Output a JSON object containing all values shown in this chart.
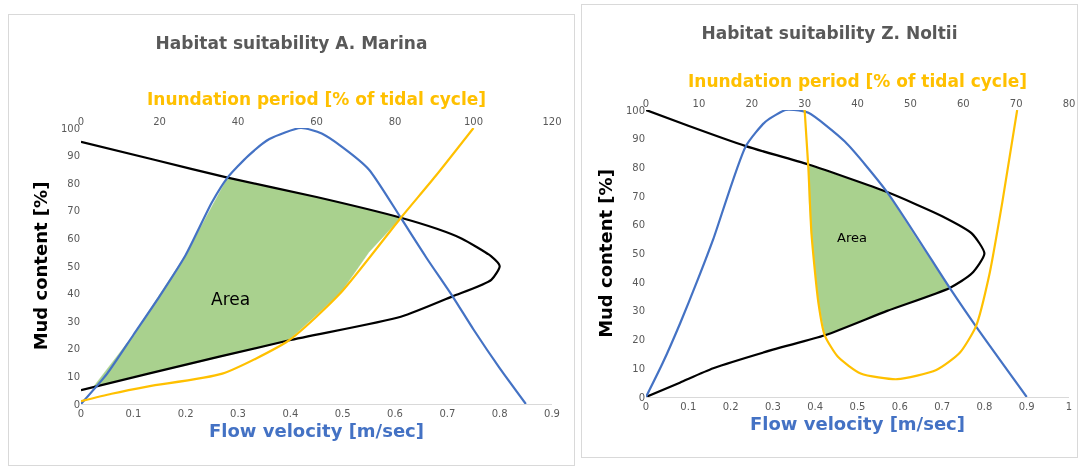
{
  "chart_data": [
    {
      "type": "line",
      "title": "Habitat suitability A. Marina",
      "xlabel": "Flow velocity [m/sec]",
      "x2label": "Inundation period [% of tidal cycle]",
      "ylabel": "Mud content [%]",
      "xlim": [
        0,
        0.9
      ],
      "xticks": [
        0,
        0.1,
        0.2,
        0.3,
        0.4,
        0.5,
        0.6,
        0.7,
        0.8,
        0.9
      ],
      "x2lim": [
        0,
        120
      ],
      "x2ticks": [
        0,
        20,
        40,
        60,
        80,
        100,
        120
      ],
      "ylim": [
        0,
        100
      ],
      "yticks": [
        0,
        10,
        20,
        30,
        40,
        50,
        60,
        70,
        80,
        90,
        100
      ],
      "grid": false,
      "annotations": [
        "Area"
      ],
      "series": [
        {
          "type": "area",
          "color": "#a9d18e",
          "x": [
            0.023,
            0.1,
            0.2,
            0.28,
            0.45,
            0.611,
            0.55,
            0.495,
            0.396,
            0.2,
            0.1,
            0.023
          ],
          "values": [
            6,
            25,
            54,
            82,
            75,
            67.5,
            55,
            40,
            23,
            14,
            10,
            6
          ]
        },
        {
          "color": "#000000",
          "x": [
            0,
            0.14,
            0.28,
            0.45,
            0.611,
            0.68,
            0.727,
            0.784,
            0.8,
            0.784,
            0.71,
            0.611,
            0.396,
            0.129,
            0
          ],
          "values": [
            95,
            88.5,
            82,
            75,
            67.5,
            63.5,
            60,
            53.5,
            50,
            45,
            39,
            31.6,
            23,
            11,
            5
          ]
        },
        {
          "color": "#4472c4",
          "x": [
            0,
            0.05,
            0.1,
            0.15,
            0.2,
            0.25,
            0.28,
            0.32,
            0.36,
            0.42,
            0.46,
            0.5,
            0.55,
            0.611,
            0.66,
            0.71,
            0.75,
            0.8,
            0.85
          ],
          "values": [
            0,
            11,
            25,
            39,
            54,
            73,
            82,
            90,
            96,
            100,
            98,
            93,
            85,
            67.5,
            53,
            39,
            27,
            13,
            0
          ]
        },
        {
          "axis": "x2",
          "color": "#ffc000",
          "x": [
            0,
            7.8,
            17.2,
            36,
            52.9,
            66,
            81.5,
            90.4,
            100
          ],
          "values": [
            1,
            3.7,
            6.4,
            11,
            23,
            40,
            67.5,
            82.7,
            100
          ]
        }
      ]
    },
    {
      "type": "line",
      "title": "Habitat suitability Z. Noltii",
      "xlabel": "Flow velocity [m/sec]",
      "x2label": "Inundation period [% of tidal cycle]",
      "ylabel": "Mud content [%]",
      "xlim": [
        0,
        1
      ],
      "xticks": [
        0,
        0.1,
        0.2,
        0.3,
        0.4,
        0.5,
        0.6,
        0.7,
        0.8,
        0.9,
        1
      ],
      "x2lim": [
        0,
        80
      ],
      "x2ticks": [
        0,
        10,
        20,
        30,
        40,
        50,
        60,
        70,
        80
      ],
      "ylim": [
        0,
        100
      ],
      "yticks": [
        0,
        10,
        20,
        30,
        40,
        50,
        60,
        70,
        80,
        90,
        100
      ],
      "grid": false,
      "annotations": [
        "Area"
      ],
      "series": [
        {
          "type": "area",
          "color": "#a9d18e",
          "x": [
            0.384,
            0.47,
            0.57,
            0.64,
            0.718,
            0.57,
            0.423,
            0.408,
            0.391,
            0.386,
            0.384
          ],
          "values": [
            81,
            76.5,
            71.4,
            55,
            38,
            30,
            21.5,
            32.9,
            56.8,
            68,
            81
          ]
        },
        {
          "color": "#000000",
          "x": [
            0,
            0.1,
            0.236,
            0.384,
            0.57,
            0.7,
            0.77,
            0.8,
            0.77,
            0.718,
            0.57,
            0.423,
            0.3,
            0.159,
            0.08,
            0
          ],
          "values": [
            100,
            94.5,
            87.4,
            81,
            71.4,
            63,
            57,
            50,
            43,
            38,
            30,
            21.5,
            16.5,
            10,
            5,
            0
          ]
        },
        {
          "color": "#4472c4",
          "x": [
            0,
            0.04,
            0.081,
            0.12,
            0.159,
            0.236,
            0.283,
            0.33,
            0.35,
            0.384,
            0.47,
            0.57,
            0.718,
            0.78,
            0.9
          ],
          "values": [
            0,
            12,
            25.8,
            40,
            55,
            87.4,
            96,
            100,
            100,
            99,
            89,
            71.4,
            38,
            24.6,
            0
          ]
        },
        {
          "axis": "x2",
          "color": "#ffc000",
          "x": [
            30,
            30.7,
            31.3,
            32.6,
            33.8,
            36.3,
            40.6,
            47.5,
            54.9,
            59.3,
            62.4,
            64.9,
            67.4,
            70.2
          ],
          "values": [
            100,
            80,
            56.8,
            32.9,
            21.5,
            14,
            8.2,
            6.2,
            9.4,
            15.3,
            24.6,
            42.3,
            68,
            100
          ]
        }
      ]
    }
  ]
}
